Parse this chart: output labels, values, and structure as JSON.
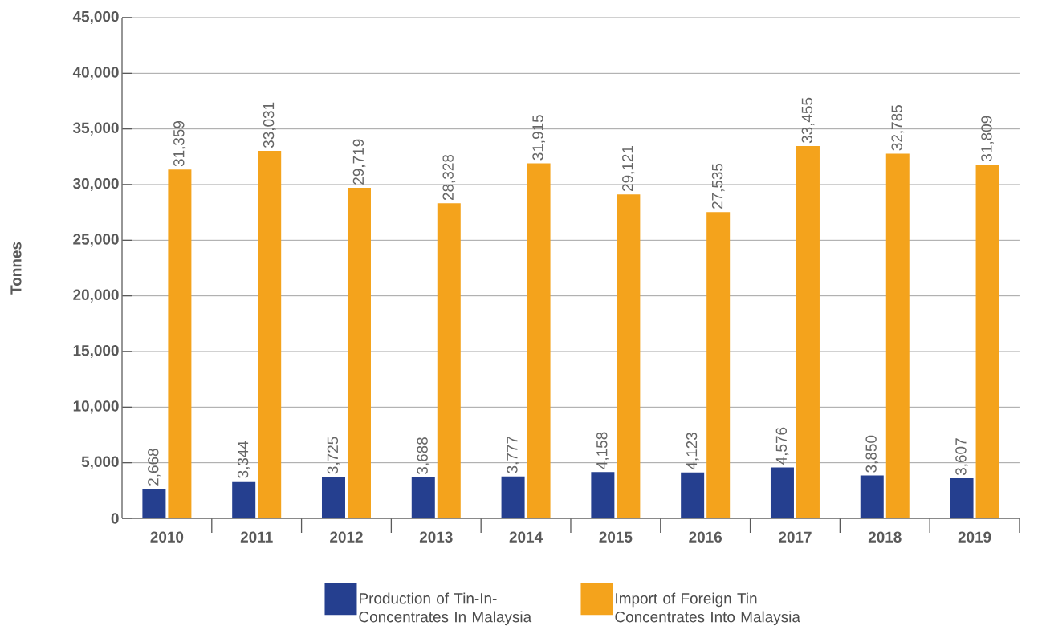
{
  "chart_data": {
    "type": "bar",
    "ylabel": "Tonnes",
    "categories": [
      "2010",
      "2011",
      "2012",
      "2013",
      "2014",
      "2015",
      "2016",
      "2017",
      "2018",
      "2019"
    ],
    "series": [
      {
        "name": "Production of Tin-In-Concentrates In Malaysia",
        "color": "#253f8f",
        "values": [
          2668,
          3344,
          3725,
          3688,
          3777,
          4158,
          4123,
          4576,
          3850,
          3607
        ],
        "value_labels": [
          "2,668",
          "3,344",
          "3,725",
          "3,688",
          "3,777",
          "4,158",
          "4,123",
          "4,576",
          "3,850",
          "3,607"
        ]
      },
      {
        "name": "Import of Foreign Tin Concentrates Into Malaysia",
        "color": "#f4a31c",
        "values": [
          31359,
          33031,
          29719,
          28328,
          31915,
          29121,
          27535,
          33455,
          32785,
          31809
        ],
        "value_labels": [
          "31,359",
          "33,031",
          "29,719",
          "28,328",
          "31,915",
          "29,121",
          "27,535",
          "33,455",
          "32,785",
          "31,809"
        ]
      }
    ],
    "ylim": [
      0,
      45000
    ],
    "yticks": [
      0,
      {
        "value": 5000,
        "label": "5,000"
      },
      {
        "value": 10000,
        "label": "10,000"
      },
      {
        "value": 15000,
        "label": "15,000"
      },
      {
        "value": 20000,
        "label": "20,000"
      },
      {
        "value": 25000,
        "label": "25,000"
      },
      {
        "value": 30000,
        "label": "30,000"
      },
      {
        "value": 35000,
        "label": "35,000"
      },
      {
        "value": 40000,
        "label": "40,000"
      },
      {
        "value": 45000,
        "label": "45,000"
      }
    ],
    "grid": "y",
    "legend": "bottom"
  }
}
